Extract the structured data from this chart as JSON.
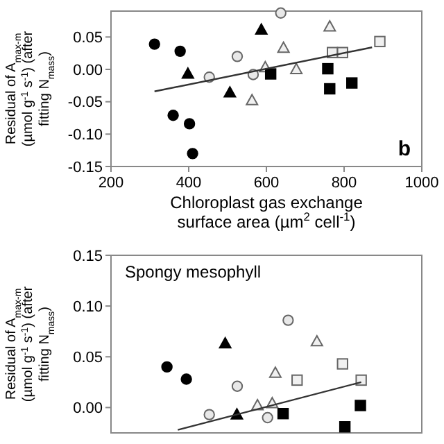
{
  "chart_data": [
    {
      "type": "scatter",
      "xlabel": "Chloroplast gas exchange surface area (µm$^{2}$ cell$^{-1}$)",
      "ylabel": "Residual of A$_{max-m}$ (µmol g$^{-1}$ s$^{-1}$) (after fitting N$_{mass}$)",
      "annotations": [
        "b"
      ],
      "xlim": [
        200,
        1000
      ],
      "xticks": [
        200,
        400,
        600,
        800,
        1000
      ],
      "ylim": [
        -0.15,
        0.09
      ],
      "yticks": [
        {
          "value": -0.15,
          "label": "-0.15"
        },
        {
          "value": -0.1,
          "label": "-0.10"
        },
        {
          "value": -0.05,
          "label": "-0.05"
        },
        {
          "value": 0,
          "label": "0.00"
        },
        {
          "value": 0.05,
          "label": "0.05"
        }
      ],
      "grid": false,
      "series": [
        {
          "color": "#000000",
          "marker": "circle",
          "x": [
            312,
            378,
            360,
            402,
            410
          ],
          "values": [
            0.039,
            0.028,
            -0.071,
            -0.084,
            -0.13
          ]
        },
        {
          "color": "#000000",
          "marker": "triangle",
          "x": [
            398,
            506,
            587
          ],
          "values": [
            -0.007,
            -0.036,
            0.061
          ]
        },
        {
          "color": "#e8e8e8",
          "marker": "circle",
          "x": [
            453,
            525,
            566,
            637
          ],
          "values": [
            -0.012,
            0.02,
            -0.008,
            0.087
          ]
        },
        {
          "color": "#f0f0f0",
          "marker": "triangle",
          "x": [
            563,
            597,
            644,
            677,
            763
          ],
          "values": [
            -0.048,
            0.003,
            0.033,
            0,
            0.066
          ]
        },
        {
          "color": "#000000",
          "marker": "square",
          "x": [
            611,
            758,
            763,
            820
          ],
          "values": [
            -0.007,
            0.001,
            -0.03,
            -0.021
          ]
        },
        {
          "color": "#f0f0f0",
          "marker": "square",
          "x": [
            770,
            796,
            892
          ],
          "values": [
            0.026,
            0.026,
            0.043
          ]
        },
        {
          "type": "line",
          "color": "#333333",
          "marker": "none",
          "x": [
            312,
            872
          ],
          "values": [
            -0.034,
            0.034
          ]
        }
      ]
    },
    {
      "type": "scatter",
      "ylabel": "Residual of A$_{max-m}$ (µmol g$^{-1}$ s$^{-1}$) (after fitting N$_{mass}$)",
      "annotations": [
        "Spongy mesophyll"
      ],
      "xlim": [
        200,
        1000
      ],
      "ylim": [
        -0.025,
        0.15
      ],
      "yticks": [
        {
          "value": 0,
          "label": "0.00"
        },
        {
          "value": 0.05,
          "label": "0.05"
        },
        {
          "value": 0.1,
          "label": "0.10"
        },
        {
          "value": 0.15,
          "label": "0.15"
        }
      ],
      "tick_labels": "y",
      "grid": false,
      "series": [
        {
          "color": "#000000",
          "marker": "circle",
          "x": [
            344,
            394
          ],
          "values": [
            0.04,
            0.028
          ]
        },
        {
          "color": "#000000",
          "marker": "triangle",
          "x": [
            494,
            524
          ],
          "values": [
            0.063,
            -0.007
          ]
        },
        {
          "color": "#e8e8e8",
          "marker": "circle",
          "x": [
            453,
            525,
            603,
            656
          ],
          "values": [
            -0.007,
            0.021,
            -0.01,
            0.086
          ]
        },
        {
          "color": "#f0f0f0",
          "marker": "triangle",
          "x": [
            577,
            615,
            623,
            730
          ],
          "values": [
            0.002,
            0.004,
            0.034,
            0.065
          ]
        },
        {
          "color": "#f0f0f0",
          "marker": "square",
          "x": [
            679,
            796,
            844
          ],
          "values": [
            0.027,
            0.043,
            0.027
          ]
        },
        {
          "color": "#000000",
          "marker": "square",
          "x": [
            643,
            842,
            802
          ],
          "values": [
            -0.006,
            0.002,
            -0.019
          ]
        },
        {
          "type": "line",
          "color": "#333333",
          "marker": "none",
          "x": [
            372,
            844
          ],
          "values": [
            -0.022,
            0.025
          ]
        }
      ]
    }
  ]
}
